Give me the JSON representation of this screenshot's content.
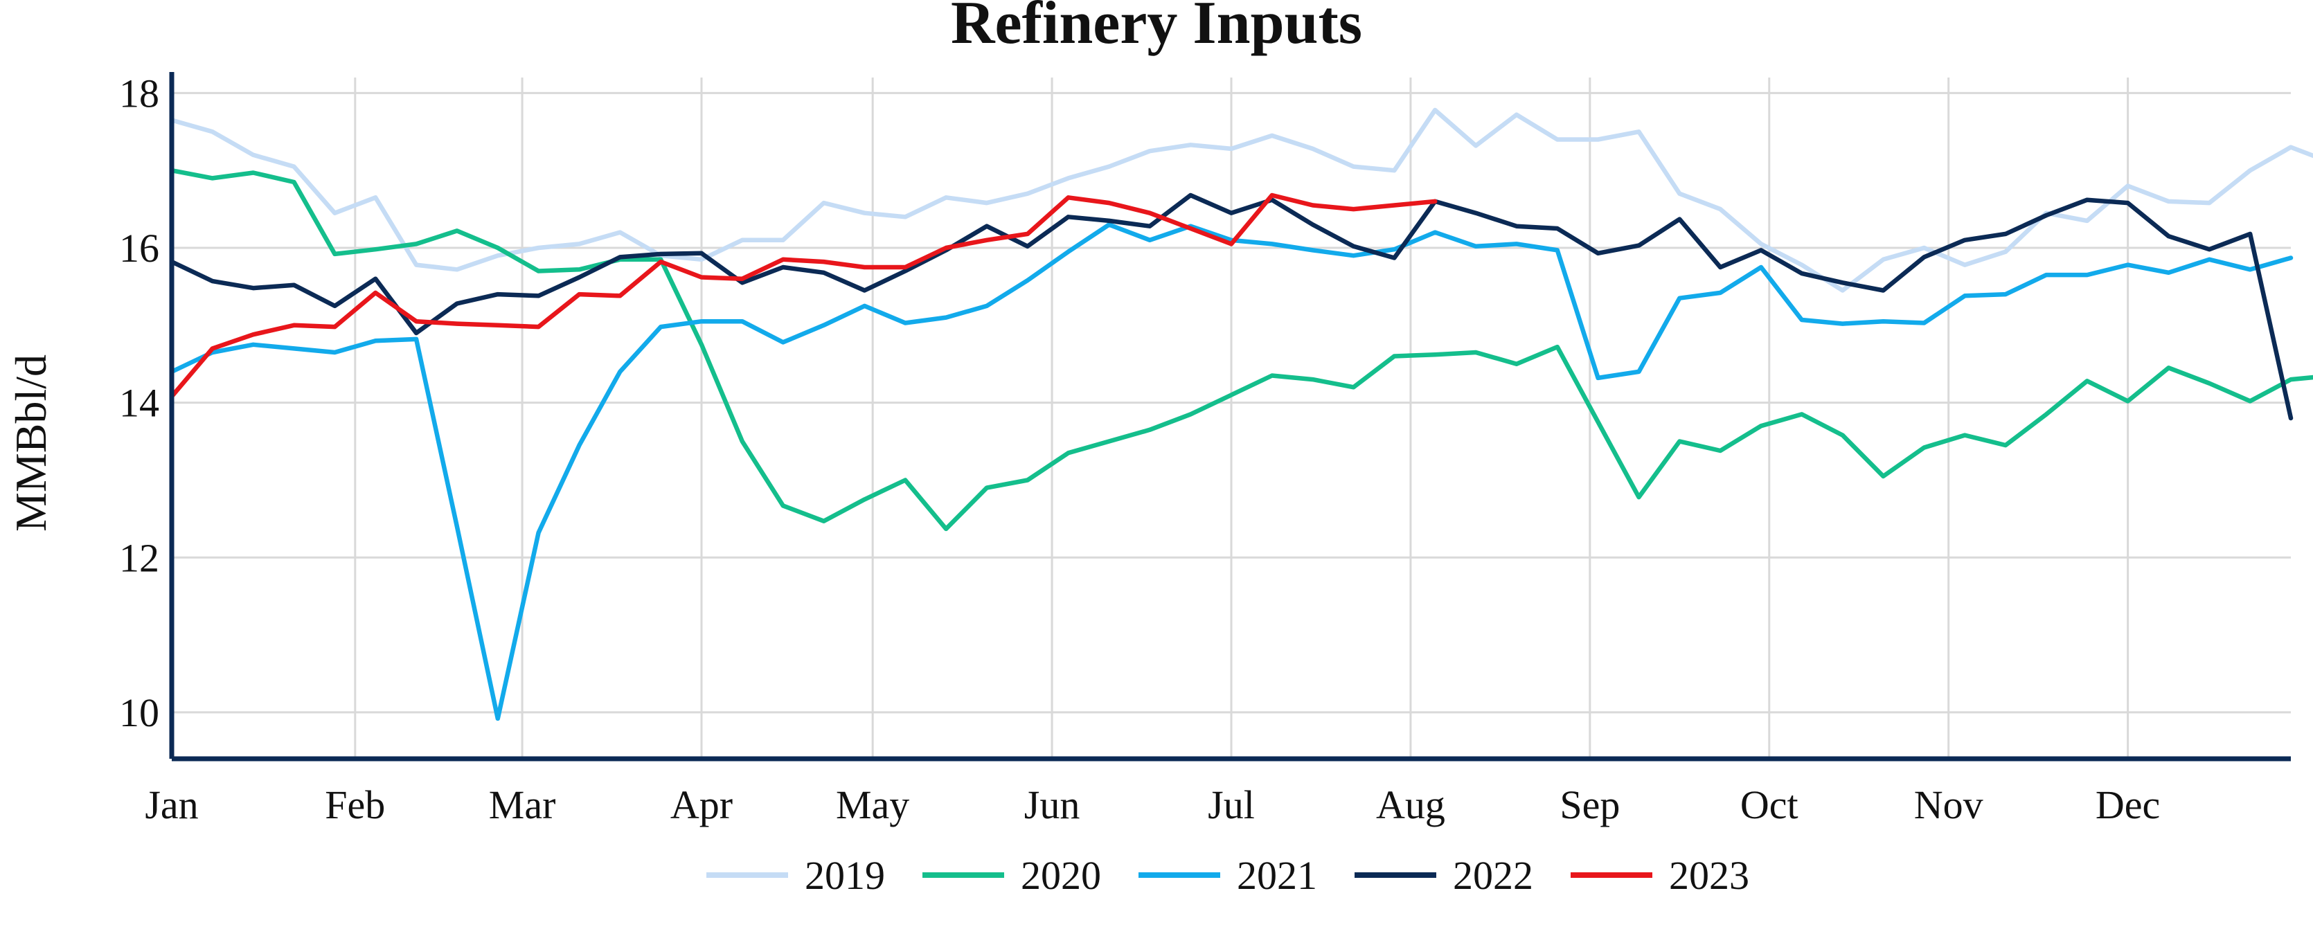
{
  "chart_data": {
    "type": "line",
    "title": "Refinery Inputs",
    "xlabel": "",
    "ylabel": "MMBbl/d",
    "x_unit": "week",
    "x_range": [
      1,
      53
    ],
    "ylim": [
      9.4,
      18.2
    ],
    "yticks": [
      10,
      12,
      14,
      16,
      18
    ],
    "xticks": [
      {
        "label": "Jan",
        "x": 1
      },
      {
        "label": "Feb",
        "x": 5.5
      },
      {
        "label": "Mar",
        "x": 9.6
      },
      {
        "label": "Apr",
        "x": 14
      },
      {
        "label": "May",
        "x": 18.2
      },
      {
        "label": "Jun",
        "x": 22.6
      },
      {
        "label": "Jul",
        "x": 27
      },
      {
        "label": "Aug",
        "x": 31.4
      },
      {
        "label": "Sep",
        "x": 35.8
      },
      {
        "label": "Oct",
        "x": 40.2
      },
      {
        "label": "Nov",
        "x": 44.6
      },
      {
        "label": "Dec",
        "x": 49
      }
    ],
    "grid": true,
    "legend_position": "bottom",
    "series": [
      {
        "name": "2019",
        "color": "#c5dcf5",
        "values": [
          17.65,
          17.5,
          17.2,
          17.05,
          16.45,
          16.65,
          15.78,
          15.72,
          15.9,
          16.0,
          16.05,
          16.2,
          15.9,
          15.85,
          16.1,
          16.1,
          16.58,
          16.45,
          16.4,
          16.65,
          16.58,
          16.7,
          16.9,
          17.05,
          17.25,
          17.33,
          17.28,
          17.45,
          17.28,
          17.05,
          17.0,
          17.78,
          17.32,
          17.72,
          17.4,
          17.4,
          17.5,
          16.7,
          16.5,
          16.05,
          15.78,
          15.45,
          15.85,
          16.0,
          15.78,
          15.95,
          16.45,
          16.35,
          16.8,
          16.6,
          16.58,
          17.0,
          17.3,
          17.1
        ]
      },
      {
        "name": "2020",
        "color": "#14be8c",
        "values": [
          17.0,
          16.9,
          16.97,
          16.85,
          15.92,
          15.98,
          16.05,
          16.22,
          16.0,
          15.7,
          15.72,
          15.85,
          15.85,
          14.75,
          13.5,
          12.67,
          12.47,
          12.75,
          13.0,
          12.37,
          12.9,
          13.0,
          13.35,
          13.5,
          13.65,
          13.85,
          14.1,
          14.35,
          14.3,
          14.2,
          14.6,
          14.62,
          14.65,
          14.5,
          14.72,
          13.75,
          12.78,
          13.5,
          13.38,
          13.7,
          13.85,
          13.58,
          13.05,
          13.42,
          13.58,
          13.45,
          13.85,
          14.28,
          14.02,
          14.45,
          14.25,
          14.02,
          14.3,
          14.35
        ]
      },
      {
        "name": "2021",
        "color": "#12aaeb",
        "values": [
          14.4,
          14.65,
          14.75,
          14.7,
          14.65,
          14.8,
          14.82,
          12.4,
          9.92,
          12.32,
          13.45,
          14.4,
          14.98,
          15.05,
          15.05,
          14.78,
          15.0,
          15.25,
          15.03,
          15.1,
          15.25,
          15.58,
          15.95,
          16.3,
          16.1,
          16.28,
          16.1,
          16.05,
          15.97,
          15.9,
          15.98,
          16.2,
          16.02,
          16.05,
          15.97,
          14.32,
          14.4,
          15.35,
          15.42,
          15.75,
          15.07,
          15.02,
          15.05,
          15.03,
          15.38,
          15.4,
          15.65,
          15.65,
          15.78,
          15.68,
          15.85,
          15.72,
          15.87
        ]
      },
      {
        "name": "2022",
        "color": "#0b2a55",
        "values": [
          15.82,
          15.57,
          15.48,
          15.52,
          15.25,
          15.6,
          14.9,
          15.28,
          15.4,
          15.38,
          15.62,
          15.88,
          15.92,
          15.93,
          15.55,
          15.75,
          15.68,
          15.45,
          15.7,
          15.97,
          16.28,
          16.02,
          16.4,
          16.35,
          16.28,
          16.68,
          16.45,
          16.62,
          16.3,
          16.02,
          15.87,
          16.6,
          16.45,
          16.28,
          16.25,
          15.93,
          16.03,
          16.37,
          15.75,
          15.97,
          15.67,
          15.55,
          15.45,
          15.88,
          16.1,
          16.18,
          16.42,
          16.62,
          16.58,
          16.15,
          15.98,
          16.18,
          13.8
        ]
      },
      {
        "name": "2023",
        "color": "#e8161b",
        "values": [
          14.08,
          14.7,
          14.88,
          15.0,
          14.98,
          15.42,
          15.05,
          15.02,
          15.0,
          14.98,
          15.4,
          15.38,
          15.82,
          15.62,
          15.6,
          15.85,
          15.82,
          15.75,
          15.75,
          16.0,
          16.1,
          16.18,
          16.65,
          16.58,
          16.45,
          16.25,
          16.05,
          16.68,
          16.55,
          16.5,
          16.55,
          16.6
        ]
      }
    ]
  }
}
